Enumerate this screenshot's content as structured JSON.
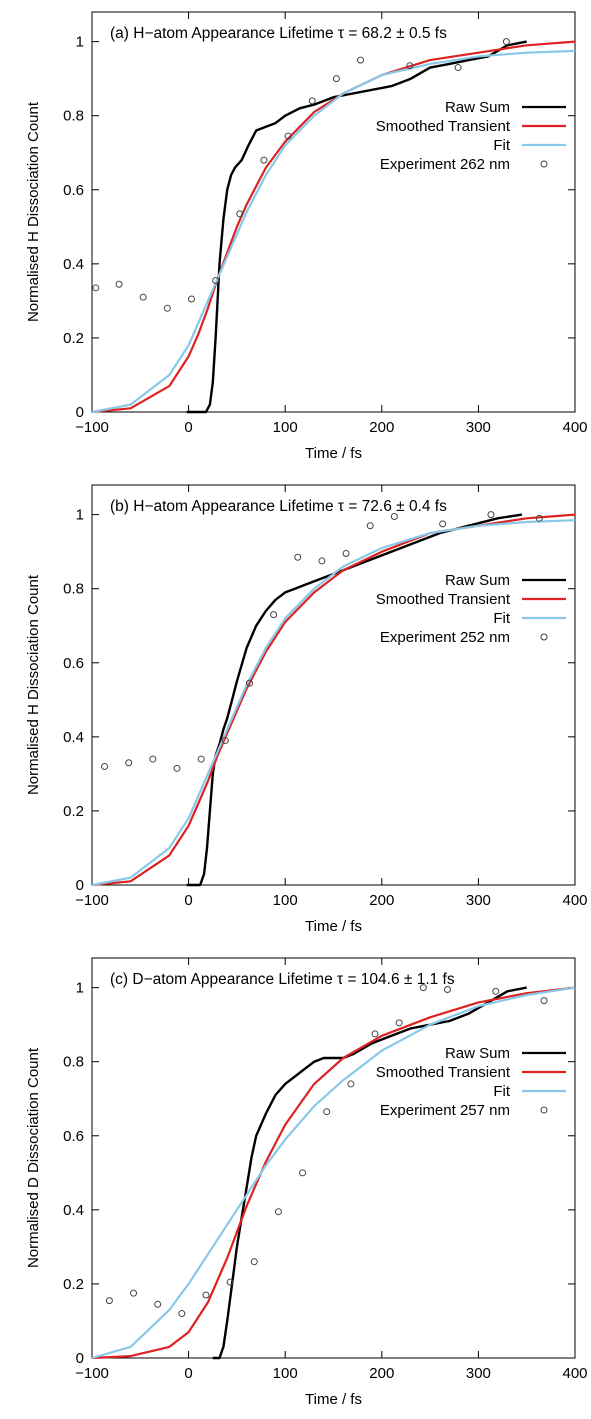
{
  "chart_data": [
    {
      "type": "line",
      "title": "(a) H−atom Appearance Lifetime τ = 68.2 ± 0.5 fs",
      "xlabel": "Time / fs",
      "ylabel": "Normalised H Dissociation Count",
      "xlim": [
        -100,
        400
      ],
      "ylim": [
        0,
        1.08
      ],
      "x_ticks": [
        -100,
        0,
        100,
        200,
        300,
        400
      ],
      "x_tick_labels": [
        "−100",
        "0",
        "100",
        "200",
        "300",
        "400"
      ],
      "y_ticks": [
        0,
        0.2,
        0.4,
        0.6,
        0.8,
        1
      ],
      "y_tick_labels": [
        "0",
        "0.2",
        "0.4",
        "0.6",
        "0.8",
        "1"
      ],
      "legend": {
        "placement": "right",
        "entries": [
          {
            "label": "Raw Sum",
            "color": "#000000",
            "kind": "line"
          },
          {
            "label": "Smoothed Transient",
            "color": "#dd2222",
            "kind": "line"
          },
          {
            "label": "Fit",
            "color": "#88c8e8",
            "kind": "line"
          },
          {
            "label": "Experiment 262 nm",
            "color": "#444444",
            "kind": "point"
          }
        ]
      },
      "series": [
        {
          "name": "Raw Sum",
          "color": "#000000",
          "x": [
            -2,
            18,
            22,
            25,
            28,
            32,
            36,
            40,
            44,
            48,
            55,
            62,
            70,
            80,
            90,
            100,
            115,
            130,
            150,
            170,
            190,
            210,
            230,
            250,
            270,
            290,
            310,
            330,
            350
          ],
          "y": [
            0.0,
            0.0,
            0.02,
            0.08,
            0.2,
            0.4,
            0.52,
            0.6,
            0.64,
            0.66,
            0.68,
            0.72,
            0.76,
            0.77,
            0.78,
            0.8,
            0.82,
            0.83,
            0.85,
            0.86,
            0.87,
            0.88,
            0.9,
            0.93,
            0.94,
            0.95,
            0.96,
            0.99,
            1.0
          ]
        },
        {
          "name": "Smoothed Transient",
          "color": "#dd2222",
          "x": [
            -100,
            -60,
            -20,
            0,
            10,
            20,
            30,
            40,
            50,
            60,
            80,
            100,
            130,
            160,
            200,
            250,
            300,
            350,
            400
          ],
          "y": [
            0.0,
            0.01,
            0.07,
            0.15,
            0.21,
            0.28,
            0.36,
            0.43,
            0.5,
            0.56,
            0.66,
            0.73,
            0.81,
            0.86,
            0.91,
            0.95,
            0.97,
            0.99,
            1.0
          ]
        },
        {
          "name": "Fit",
          "color": "#88c8e8",
          "x": [
            -100,
            -60,
            -20,
            0,
            20,
            30,
            40,
            60,
            80,
            100,
            130,
            160,
            200,
            250,
            300,
            350,
            400
          ],
          "y": [
            0.0,
            0.02,
            0.1,
            0.18,
            0.3,
            0.36,
            0.42,
            0.54,
            0.64,
            0.72,
            0.8,
            0.86,
            0.91,
            0.94,
            0.96,
            0.97,
            0.975
          ]
        },
        {
          "name": "Experiment 262 nm",
          "color": "#444444",
          "points": true,
          "x": [
            -96,
            -72,
            -47,
            -22,
            3,
            28,
            53,
            78,
            103,
            128,
            153,
            178,
            229,
            279,
            329
          ],
          "y": [
            0.335,
            0.345,
            0.31,
            0.28,
            0.305,
            0.355,
            0.535,
            0.68,
            0.745,
            0.84,
            0.9,
            0.95,
            0.935,
            0.93,
            1.0
          ]
        }
      ]
    },
    {
      "type": "line",
      "title": "(b) H−atom Appearance Lifetime τ = 72.6 ± 0.4 fs",
      "xlabel": "Time / fs",
      "ylabel": "Normalised H Dissociation Count",
      "xlim": [
        -100,
        400
      ],
      "ylim": [
        0,
        1.08
      ],
      "x_ticks": [
        -100,
        0,
        100,
        200,
        300,
        400
      ],
      "x_tick_labels": [
        "−100",
        "0",
        "100",
        "200",
        "300",
        "400"
      ],
      "y_ticks": [
        0,
        0.2,
        0.4,
        0.6,
        0.8,
        1
      ],
      "y_tick_labels": [
        "0",
        "0.2",
        "0.4",
        "0.6",
        "0.8",
        "1"
      ],
      "legend": {
        "placement": "right",
        "entries": [
          {
            "label": "Raw Sum",
            "color": "#000000",
            "kind": "line"
          },
          {
            "label": "Smoothed Transient",
            "color": "#dd2222",
            "kind": "line"
          },
          {
            "label": "Fit",
            "color": "#88c8e8",
            "kind": "line"
          },
          {
            "label": "Experiment 252 nm",
            "color": "#444444",
            "kind": "point"
          }
        ]
      },
      "series": [
        {
          "name": "Raw Sum",
          "color": "#000000",
          "x": [
            -2,
            12,
            16,
            19,
            22,
            25,
            28,
            32,
            36,
            40,
            45,
            50,
            60,
            70,
            80,
            90,
            100,
            110,
            120,
            140,
            160,
            180,
            200,
            230,
            260,
            290,
            320,
            345
          ],
          "y": [
            0.0,
            0.0,
            0.03,
            0.1,
            0.2,
            0.3,
            0.35,
            0.38,
            0.42,
            0.45,
            0.5,
            0.55,
            0.64,
            0.7,
            0.74,
            0.77,
            0.79,
            0.8,
            0.81,
            0.83,
            0.85,
            0.87,
            0.89,
            0.92,
            0.95,
            0.97,
            0.99,
            1.0
          ]
        },
        {
          "name": "Smoothed Transient",
          "color": "#dd2222",
          "x": [
            -100,
            -60,
            -20,
            0,
            10,
            20,
            30,
            40,
            60,
            80,
            100,
            130,
            160,
            200,
            250,
            300,
            350,
            400
          ],
          "y": [
            0.0,
            0.01,
            0.08,
            0.16,
            0.22,
            0.28,
            0.35,
            0.41,
            0.53,
            0.63,
            0.71,
            0.79,
            0.85,
            0.9,
            0.95,
            0.97,
            0.99,
            1.0
          ]
        },
        {
          "name": "Fit",
          "color": "#88c8e8",
          "x": [
            -100,
            -60,
            -20,
            0,
            20,
            40,
            60,
            80,
            100,
            130,
            160,
            200,
            250,
            300,
            350,
            400
          ],
          "y": [
            0.0,
            0.02,
            0.1,
            0.18,
            0.3,
            0.42,
            0.54,
            0.64,
            0.72,
            0.8,
            0.86,
            0.91,
            0.95,
            0.97,
            0.98,
            0.985
          ]
        },
        {
          "name": "Experiment 252 nm",
          "color": "#444444",
          "points": true,
          "x": [
            -87,
            -62,
            -37,
            -12,
            13,
            38,
            63,
            88,
            113,
            138,
            163,
            188,
            213,
            263,
            313,
            363
          ],
          "y": [
            0.32,
            0.33,
            0.34,
            0.315,
            0.34,
            0.39,
            0.545,
            0.73,
            0.885,
            0.875,
            0.895,
            0.97,
            0.995,
            0.975,
            1.0,
            0.99
          ]
        }
      ]
    },
    {
      "type": "line",
      "title": "(c) D−atom Appearance Lifetime τ = 104.6 ± 1.1 fs",
      "xlabel": "Time / fs",
      "ylabel": "Normalised D Dissociation Count",
      "xlim": [
        -100,
        400
      ],
      "ylim": [
        0,
        1.08
      ],
      "x_ticks": [
        -100,
        0,
        100,
        200,
        300,
        400
      ],
      "x_tick_labels": [
        "−100",
        "0",
        "100",
        "200",
        "300",
        "400"
      ],
      "y_ticks": [
        0,
        0.2,
        0.4,
        0.6,
        0.8,
        1
      ],
      "y_tick_labels": [
        "0",
        "0.2",
        "0.4",
        "0.6",
        "0.8",
        "1"
      ],
      "legend": {
        "placement": "right",
        "entries": [
          {
            "label": "Raw Sum",
            "color": "#000000",
            "kind": "line"
          },
          {
            "label": "Smoothed Transient",
            "color": "#dd2222",
            "kind": "line"
          },
          {
            "label": "Fit",
            "color": "#88c8e8",
            "kind": "line"
          },
          {
            "label": "Experiment 257 nm",
            "color": "#444444",
            "kind": "point"
          }
        ]
      },
      "series": [
        {
          "name": "Raw Sum",
          "color": "#000000",
          "x": [
            25,
            32,
            36,
            40,
            45,
            50,
            55,
            60,
            65,
            70,
            80,
            90,
            100,
            110,
            120,
            130,
            140,
            150,
            160,
            170,
            190,
            210,
            230,
            250,
            270,
            290,
            310,
            330,
            350
          ],
          "y": [
            0.0,
            0.0,
            0.03,
            0.1,
            0.2,
            0.3,
            0.38,
            0.46,
            0.54,
            0.6,
            0.66,
            0.71,
            0.74,
            0.76,
            0.78,
            0.8,
            0.81,
            0.81,
            0.81,
            0.82,
            0.85,
            0.87,
            0.89,
            0.9,
            0.91,
            0.93,
            0.96,
            0.99,
            1.0
          ]
        },
        {
          "name": "Smoothed Transient",
          "color": "#dd2222",
          "x": [
            -100,
            -60,
            -20,
            0,
            20,
            40,
            60,
            80,
            100,
            130,
            160,
            200,
            250,
            300,
            350,
            400
          ],
          "y": [
            0.0,
            0.005,
            0.03,
            0.07,
            0.15,
            0.27,
            0.41,
            0.53,
            0.63,
            0.74,
            0.81,
            0.87,
            0.92,
            0.96,
            0.985,
            1.0
          ]
        },
        {
          "name": "Fit",
          "color": "#88c8e8",
          "x": [
            -100,
            -60,
            -20,
            0,
            20,
            40,
            60,
            80,
            100,
            130,
            160,
            200,
            250,
            300,
            350,
            400
          ],
          "y": [
            0.0,
            0.03,
            0.13,
            0.2,
            0.28,
            0.36,
            0.44,
            0.52,
            0.59,
            0.68,
            0.75,
            0.83,
            0.9,
            0.95,
            0.98,
            1.0
          ]
        },
        {
          "name": "Experiment 257 nm",
          "color": "#444444",
          "points": true,
          "x": [
            -82,
            -57,
            -32,
            -7,
            18,
            43,
            68,
            93,
            118,
            143,
            168,
            193,
            218,
            243,
            268,
            318,
            368
          ],
          "y": [
            0.155,
            0.175,
            0.145,
            0.12,
            0.17,
            0.205,
            0.26,
            0.395,
            0.5,
            0.665,
            0.74,
            0.875,
            0.905,
            1.0,
            0.995,
            0.99,
            0.965
          ]
        }
      ]
    }
  ]
}
